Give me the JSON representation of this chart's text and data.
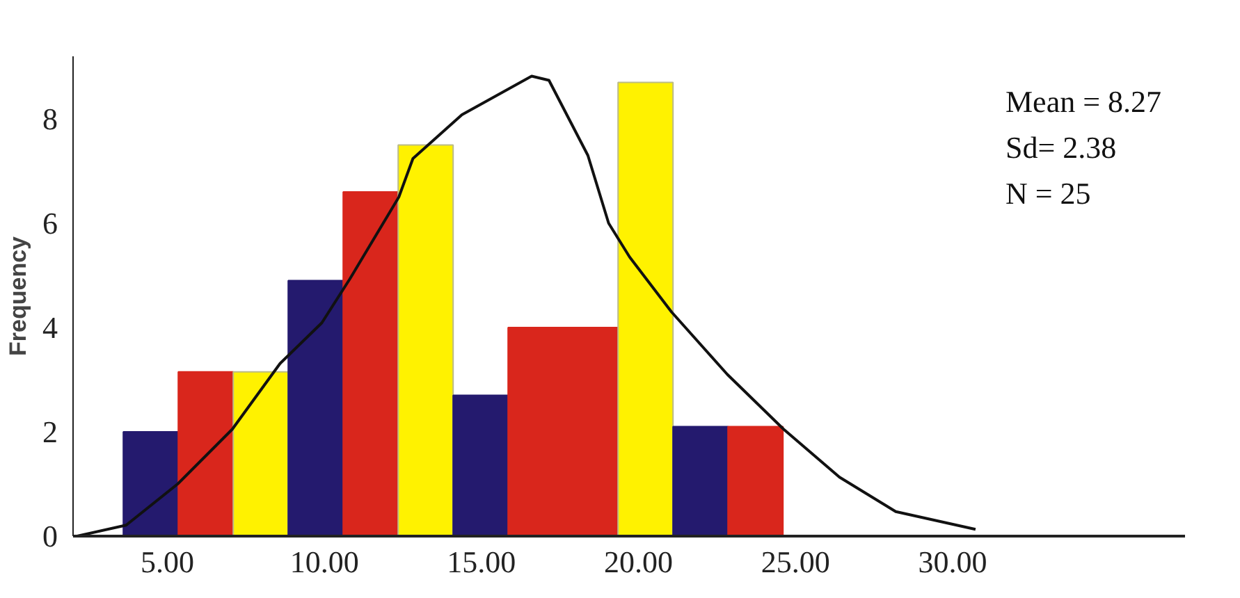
{
  "chart_data": {
    "type": "histogram",
    "ylabel": "Frequency",
    "bins": [
      3.6,
      5.35,
      7.1,
      8.85,
      10.6,
      12.35,
      14.1,
      15.85,
      19.35,
      21.1,
      22.85,
      24.6
    ],
    "values": [
      2.0,
      3.15,
      3.15,
      4.9,
      6.6,
      7.5,
      2.7,
      4.0,
      8.7,
      2.1,
      2.1
    ],
    "colors": [
      "#241a6e",
      "#d9261c",
      "#fff200",
      "#241a6e",
      "#d9261c",
      "#fff200",
      "#241a6e",
      "#d9261c",
      "#fff200",
      "#241a6e",
      "#d9261c"
    ],
    "series": [
      {
        "type": "line",
        "color": "#111111",
        "x": [
          2.13,
          3.69,
          5.33,
          7.07,
          8.59,
          9.92,
          10.81,
          12.37,
          12.82,
          14.38,
          16.6,
          17.15,
          18.39,
          19.05,
          19.72,
          21.05,
          22.83,
          24.62,
          26.4,
          28.19,
          30.73
        ],
        "values": [
          0,
          0.21,
          1.0,
          2.05,
          3.31,
          4.09,
          4.93,
          6.5,
          7.24,
          8.08,
          8.82,
          8.74,
          7.3,
          6.0,
          5.35,
          4.3,
          3.1,
          2.05,
          1.13,
          0.47,
          0.13
        ]
      }
    ],
    "xlim": [
      2.0,
      37.4
    ],
    "ylim": [
      0,
      9.2
    ],
    "xticks": [
      {
        "value": 5,
        "label": "5.00"
      },
      {
        "value": 10,
        "label": "10.00"
      },
      {
        "value": 15,
        "label": "15.00"
      },
      {
        "value": 20,
        "label": "20.00"
      },
      {
        "value": 25,
        "label": "25.00"
      },
      {
        "value": 30,
        "label": "30.00"
      }
    ],
    "yticks": [
      0,
      2,
      4,
      6,
      8
    ],
    "annotations": [
      "Mean = 8.27",
      "Sd= 2.38",
      "N       = 25"
    ],
    "grid": false
  }
}
